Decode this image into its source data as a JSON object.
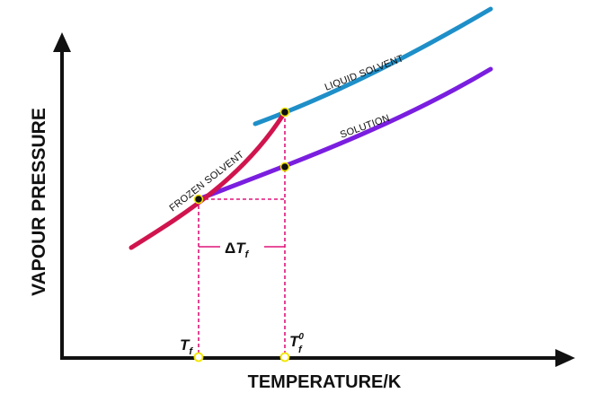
{
  "axes": {
    "y_label": "VAPOUR PRESSURE",
    "x_label": "TEMPERATURE/K"
  },
  "curves": {
    "liquid_solvent": {
      "label": "LIQUID SOLVENT",
      "color": "#1e8fc8"
    },
    "solution": {
      "label": "SOLUTION",
      "color": "#7a1ee0"
    },
    "frozen_solvent": {
      "label": "FROZEN SOLVENT",
      "color": "#d0144e"
    }
  },
  "guide_color": "#e0147a",
  "point_fill": "#111111",
  "point_ring": "#f2e600",
  "symbols": {
    "delta": {
      "prefix": "Δ",
      "main": "T",
      "sub": "f"
    },
    "tf": {
      "main": "T",
      "sub": "f"
    },
    "tf0": {
      "main": "T",
      "sub": "f",
      "sup": "0"
    }
  }
}
